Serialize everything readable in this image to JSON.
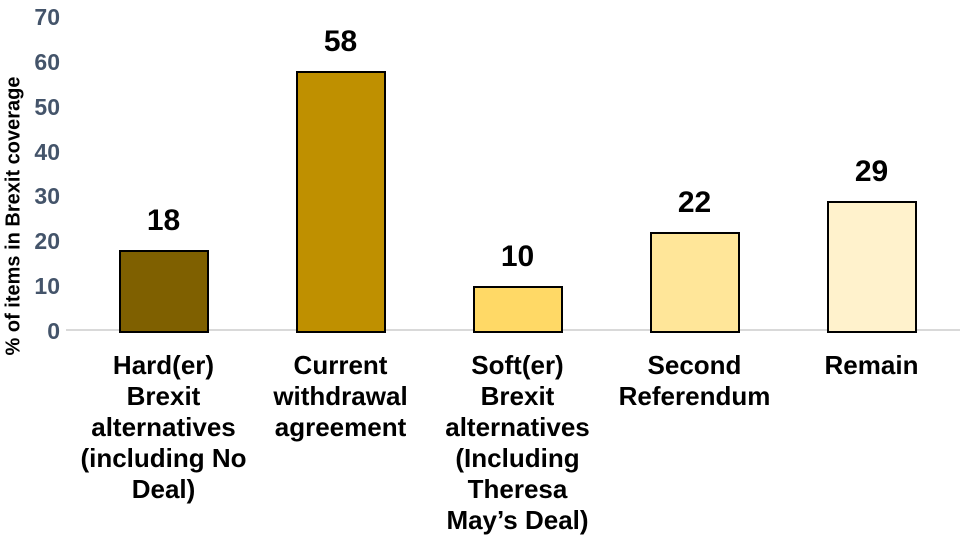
{
  "chart_data": {
    "type": "bar",
    "title": "",
    "ylabel": "% of items in Brexit coverage",
    "xlabel": "",
    "ylim": [
      0,
      70
    ],
    "yticks": [
      0,
      10,
      20,
      30,
      40,
      50,
      60,
      70
    ],
    "grid": false,
    "legend": false,
    "categories": [
      "Hard(er)\nBrexit\nalternatives\n(including No\nDeal)",
      "Current\nwithdrawal\nagreement",
      "Soft(er)\nBrexit\nalternatives\n(Including\nTheresa\nMay’s Deal)",
      "Second\nReferendum",
      "Remain"
    ],
    "values": [
      18,
      58,
      10,
      22,
      29
    ],
    "value_labels": [
      "18",
      "58",
      "10",
      "22",
      "29"
    ],
    "colors": {
      "bars": [
        "#7F6000",
        "#BF9000",
        "#FFD966",
        "#FFE699",
        "#FFF2CC"
      ],
      "bar_border": "#000000",
      "tick_labels": "#44546A",
      "axis_line": "#D9D9D9",
      "value_labels": "#000000",
      "category_labels": "#000000",
      "background": "#FFFFFF"
    }
  }
}
